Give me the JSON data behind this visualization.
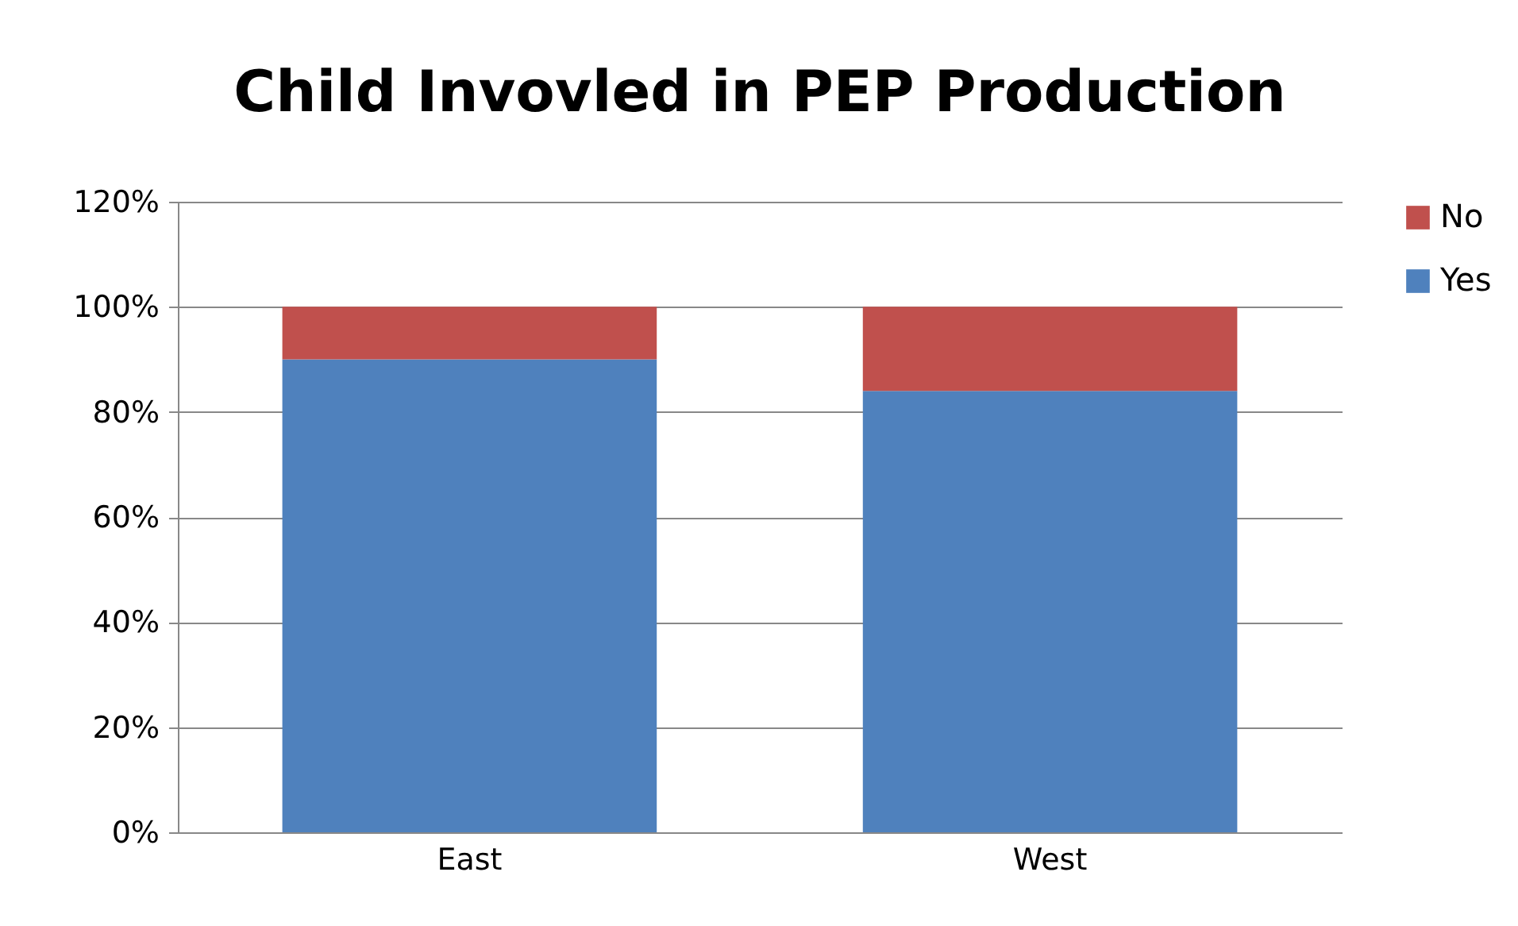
{
  "chart_data": {
    "type": "bar",
    "title": "Child Invovled in PEP Production",
    "categories": [
      "East",
      "West"
    ],
    "stacked": true,
    "series": [
      {
        "name": "Yes",
        "color": "#4f81bd",
        "values": [
          90,
          84
        ]
      },
      {
        "name": "No",
        "color": "#c0504d",
        "values": [
          10,
          16
        ]
      }
    ],
    "ylim": [
      0,
      120
    ],
    "yticks": [
      {
        "value": 0,
        "label": "0%"
      },
      {
        "value": 20,
        "label": "20%"
      },
      {
        "value": 40,
        "label": "40%"
      },
      {
        "value": 60,
        "label": "60%"
      },
      {
        "value": 80,
        "label": "80%"
      },
      {
        "value": 100,
        "label": "100%"
      },
      {
        "value": 120,
        "label": "120%"
      }
    ],
    "grid": true,
    "legend": "right"
  }
}
